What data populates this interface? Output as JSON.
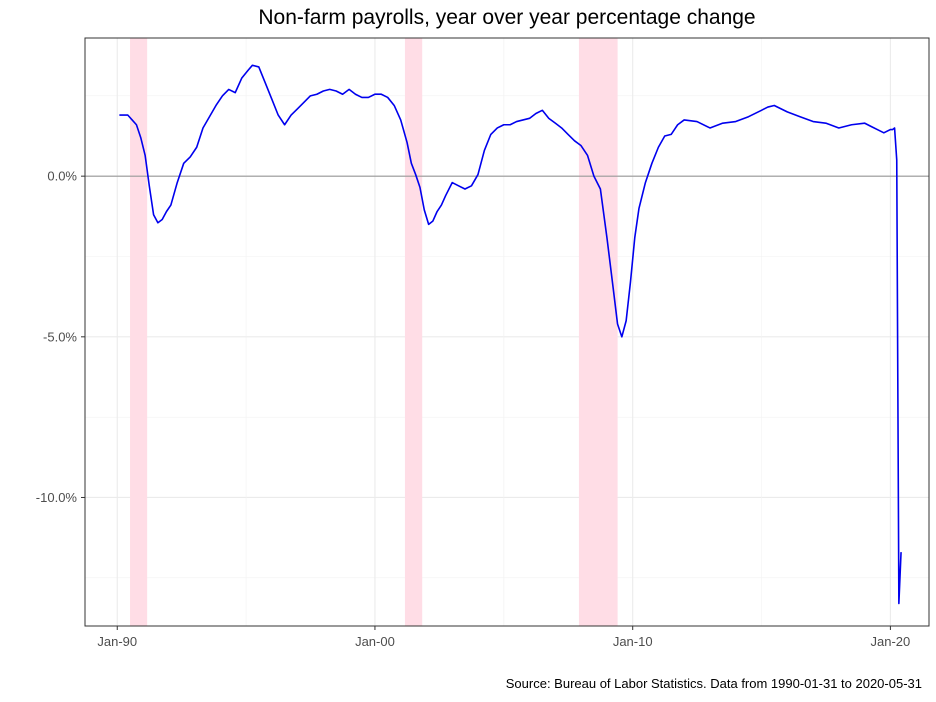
{
  "chart_data": {
    "type": "line",
    "title": "Non-farm payrolls, year over year percentage change",
    "caption": "Source: Bureau of Labor Statistics. Data from 1990-01-31 to 2020-05-31",
    "xlabel": "",
    "ylabel": "",
    "xlim": [
      "1988-10-01",
      "2021-07-01"
    ],
    "ylim": [
      -14.0,
      4.3
    ],
    "grid": true,
    "legend": "none",
    "x_ticks": [
      {
        "value": "1990-01-01",
        "label": "Jan-90"
      },
      {
        "value": "2000-01-01",
        "label": "Jan-00"
      },
      {
        "value": "2010-01-01",
        "label": "Jan-10"
      },
      {
        "value": "2020-01-01",
        "label": "Jan-20"
      }
    ],
    "y_ticks": [
      {
        "value": 0,
        "label": "0.0%"
      },
      {
        "value": -5,
        "label": "-5.0%"
      },
      {
        "value": -10,
        "label": "-10.0%"
      }
    ],
    "zero_line": 0,
    "recessions": [
      {
        "start": "1990-07-01",
        "end": "1991-03-01"
      },
      {
        "start": "2001-03-01",
        "end": "2001-11-01"
      },
      {
        "start": "2007-12-01",
        "end": "2009-06-01"
      }
    ],
    "colors": {
      "line": "#0000ee",
      "line_in_recession": "#7b52ee",
      "recession": "#ffdde6",
      "zero_line": "#999999",
      "panel_border": "#333333"
    },
    "series": [
      {
        "x": [
          "1990-01-31",
          "1990-03-31",
          "1990-05-31",
          "1990-07-31",
          "1990-09-30",
          "1990-11-30",
          "1991-01-31",
          "1991-03-31",
          "1991-05-31",
          "1991-07-31",
          "1991-09-30",
          "1991-11-30",
          "1992-01-31",
          "1992-04-30",
          "1992-07-31",
          "1992-10-31",
          "1993-01-31",
          "1993-04-30",
          "1993-07-31",
          "1993-10-31",
          "1994-01-31",
          "1994-04-30",
          "1994-07-31",
          "1994-10-31",
          "1995-01-31",
          "1995-03-31",
          "1995-06-30",
          "1995-09-30",
          "1995-12-31",
          "1996-03-31",
          "1996-06-30",
          "1996-09-30",
          "1996-12-31",
          "1997-03-31",
          "1997-06-30",
          "1997-09-30",
          "1997-12-31",
          "1998-03-31",
          "1998-06-30",
          "1998-09-30",
          "1998-12-31",
          "1999-03-31",
          "1999-06-30",
          "1999-09-30",
          "1999-12-31",
          "2000-03-31",
          "2000-06-30",
          "2000-09-30",
          "2000-12-31",
          "2001-03-31",
          "2001-05-31",
          "2001-07-31",
          "2001-09-30",
          "2001-11-30",
          "2002-01-31",
          "2002-03-31",
          "2002-05-31",
          "2002-07-31",
          "2002-09-30",
          "2002-12-31",
          "2003-03-31",
          "2003-06-30",
          "2003-09-30",
          "2003-12-31",
          "2004-03-31",
          "2004-06-30",
          "2004-09-30",
          "2004-12-31",
          "2005-03-31",
          "2005-06-30",
          "2005-09-30",
          "2005-12-31",
          "2006-03-31",
          "2006-06-30",
          "2006-09-30",
          "2006-12-31",
          "2007-03-31",
          "2007-06-30",
          "2007-09-30",
          "2007-12-31",
          "2008-03-31",
          "2008-06-30",
          "2008-09-30",
          "2008-12-31",
          "2009-03-31",
          "2009-05-31",
          "2009-07-31",
          "2009-09-30",
          "2009-11-30",
          "2010-01-31",
          "2010-03-31",
          "2010-06-30",
          "2010-09-30",
          "2010-12-31",
          "2011-03-31",
          "2011-06-30",
          "2011-09-30",
          "2011-12-31",
          "2012-06-30",
          "2012-12-31",
          "2013-06-30",
          "2013-12-31",
          "2014-06-30",
          "2014-12-31",
          "2015-03-31",
          "2015-06-30",
          "2015-12-31",
          "2016-06-30",
          "2016-12-31",
          "2017-06-30",
          "2017-12-31",
          "2018-06-30",
          "2018-12-31",
          "2019-03-31",
          "2019-06-30",
          "2019-09-30",
          "2019-12-31",
          "2020-01-31",
          "2020-02-29",
          "2020-03-31",
          "2020-04-30",
          "2020-05-31"
        ],
        "values": [
          1.9,
          1.9,
          1.9,
          1.75,
          1.6,
          1.2,
          0.65,
          -0.3,
          -1.2,
          -1.45,
          -1.35,
          -1.1,
          -0.9,
          -0.2,
          0.4,
          0.6,
          0.9,
          1.5,
          1.85,
          2.2,
          2.5,
          2.7,
          2.6,
          3.05,
          3.3,
          3.45,
          3.4,
          2.9,
          2.4,
          1.9,
          1.6,
          1.9,
          2.1,
          2.3,
          2.5,
          2.55,
          2.65,
          2.7,
          2.65,
          2.55,
          2.7,
          2.55,
          2.45,
          2.45,
          2.55,
          2.55,
          2.45,
          2.2,
          1.75,
          1.05,
          0.4,
          0.05,
          -0.35,
          -1.05,
          -1.5,
          -1.4,
          -1.1,
          -0.9,
          -0.6,
          -0.2,
          -0.3,
          -0.4,
          -0.3,
          0.05,
          0.8,
          1.3,
          1.5,
          1.6,
          1.6,
          1.7,
          1.75,
          1.8,
          1.95,
          2.05,
          1.8,
          1.65,
          1.5,
          1.3,
          1.1,
          0.95,
          0.65,
          0.0,
          -0.4,
          -1.9,
          -3.5,
          -4.6,
          -5.0,
          -4.5,
          -3.3,
          -1.9,
          -1.0,
          -0.2,
          0.4,
          0.9,
          1.25,
          1.3,
          1.6,
          1.75,
          1.7,
          1.5,
          1.65,
          1.7,
          1.85,
          2.05,
          2.15,
          2.2,
          2.0,
          1.85,
          1.7,
          1.65,
          1.5,
          1.6,
          1.65,
          1.55,
          1.45,
          1.35,
          1.45,
          1.45,
          1.5,
          0.5,
          -13.3,
          -11.7
        ]
      }
    ]
  }
}
